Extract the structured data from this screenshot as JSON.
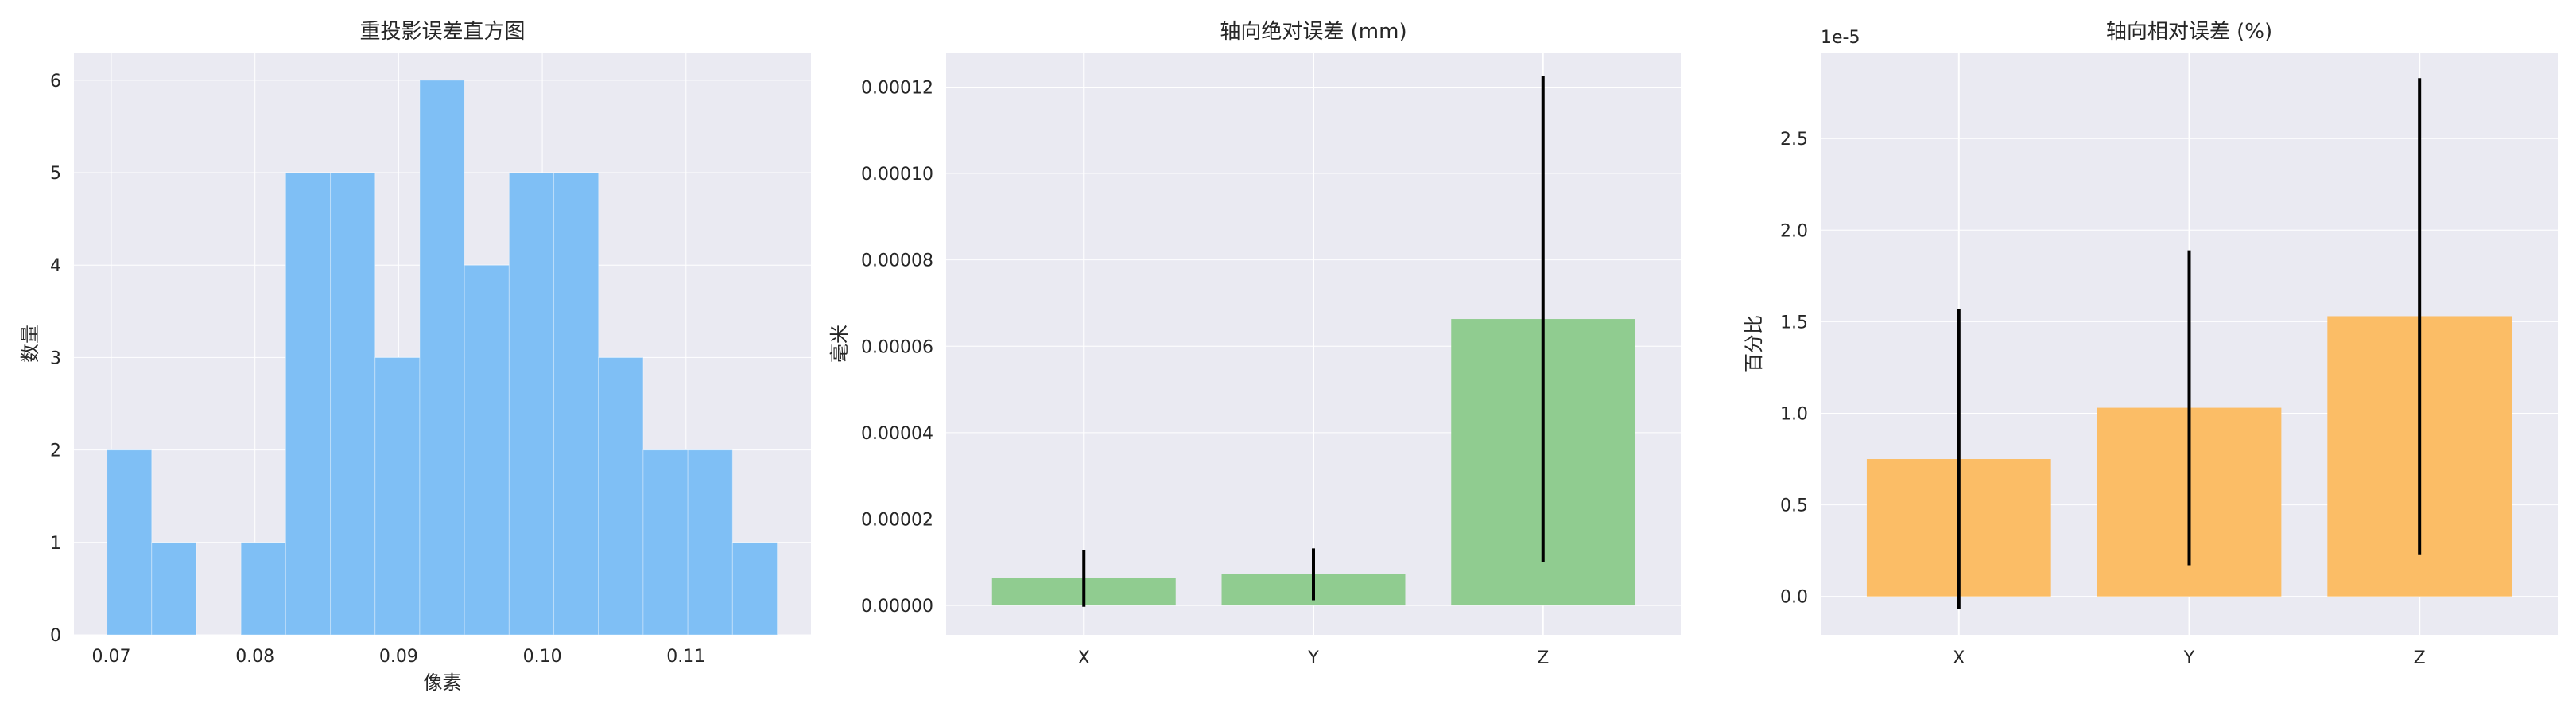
{
  "chart_data": [
    {
      "type": "bar",
      "subtype": "histogram",
      "title": "重投影误差直方图",
      "xlabel": "像素",
      "ylabel": "数量",
      "bin_start": 0.0697,
      "bin_width": 0.00311,
      "counts": [
        2,
        1,
        0,
        1,
        5,
        5,
        3,
        6,
        4,
        5,
        5,
        3,
        2,
        2,
        1
      ],
      "xlim": [
        0.0674,
        0.1187
      ],
      "ylim": [
        0,
        6.3
      ],
      "xticks": [
        0.07,
        0.08,
        0.09,
        0.1,
        0.11
      ],
      "xtick_labels": [
        "0.07",
        "0.08",
        "0.09",
        "0.10",
        "0.11"
      ],
      "yticks": [
        0,
        1,
        2,
        3,
        4,
        5,
        6
      ],
      "ytick_labels": [
        "0",
        "1",
        "2",
        "3",
        "4",
        "5",
        "6"
      ],
      "color": "#7fbff5",
      "grid": true
    },
    {
      "type": "bar",
      "title": "轴向绝对误差 (mm)",
      "xlabel": "",
      "ylabel": "毫米",
      "categories": [
        "X",
        "Y",
        "Z"
      ],
      "values": [
        6.3e-06,
        7.2e-06,
        6.63e-05
      ],
      "errors": [
        6.6e-06,
        6e-06,
        5.62e-05
      ],
      "ylim": [
        -6.8e-06,
        0.000128
      ],
      "yticks": [
        0,
        2e-05,
        4e-05,
        6e-05,
        8e-05,
        0.0001,
        0.00012
      ],
      "ytick_labels": [
        "0.00000",
        "0.00002",
        "0.00004",
        "0.00006",
        "0.00008",
        "0.00010",
        "0.00012"
      ],
      "color": "#90cc90",
      "grid": true
    },
    {
      "type": "bar",
      "title": "轴向相对误差 (%)",
      "xlabel": "",
      "ylabel": "百分比",
      "offset_label": "1e-5",
      "categories": [
        "X",
        "Y",
        "Z"
      ],
      "values": [
        0.75,
        1.03,
        1.53
      ],
      "errors": [
        0.82,
        0.86,
        1.3
      ],
      "ylim": [
        -0.21,
        2.97
      ],
      "yticks": [
        0,
        0.5,
        1.0,
        1.5,
        2.0,
        2.5
      ],
      "ytick_labels": [
        "0.0",
        "0.5",
        "1.0",
        "1.5",
        "2.0",
        "2.5"
      ],
      "color": "#fbbd66",
      "grid": true
    }
  ]
}
